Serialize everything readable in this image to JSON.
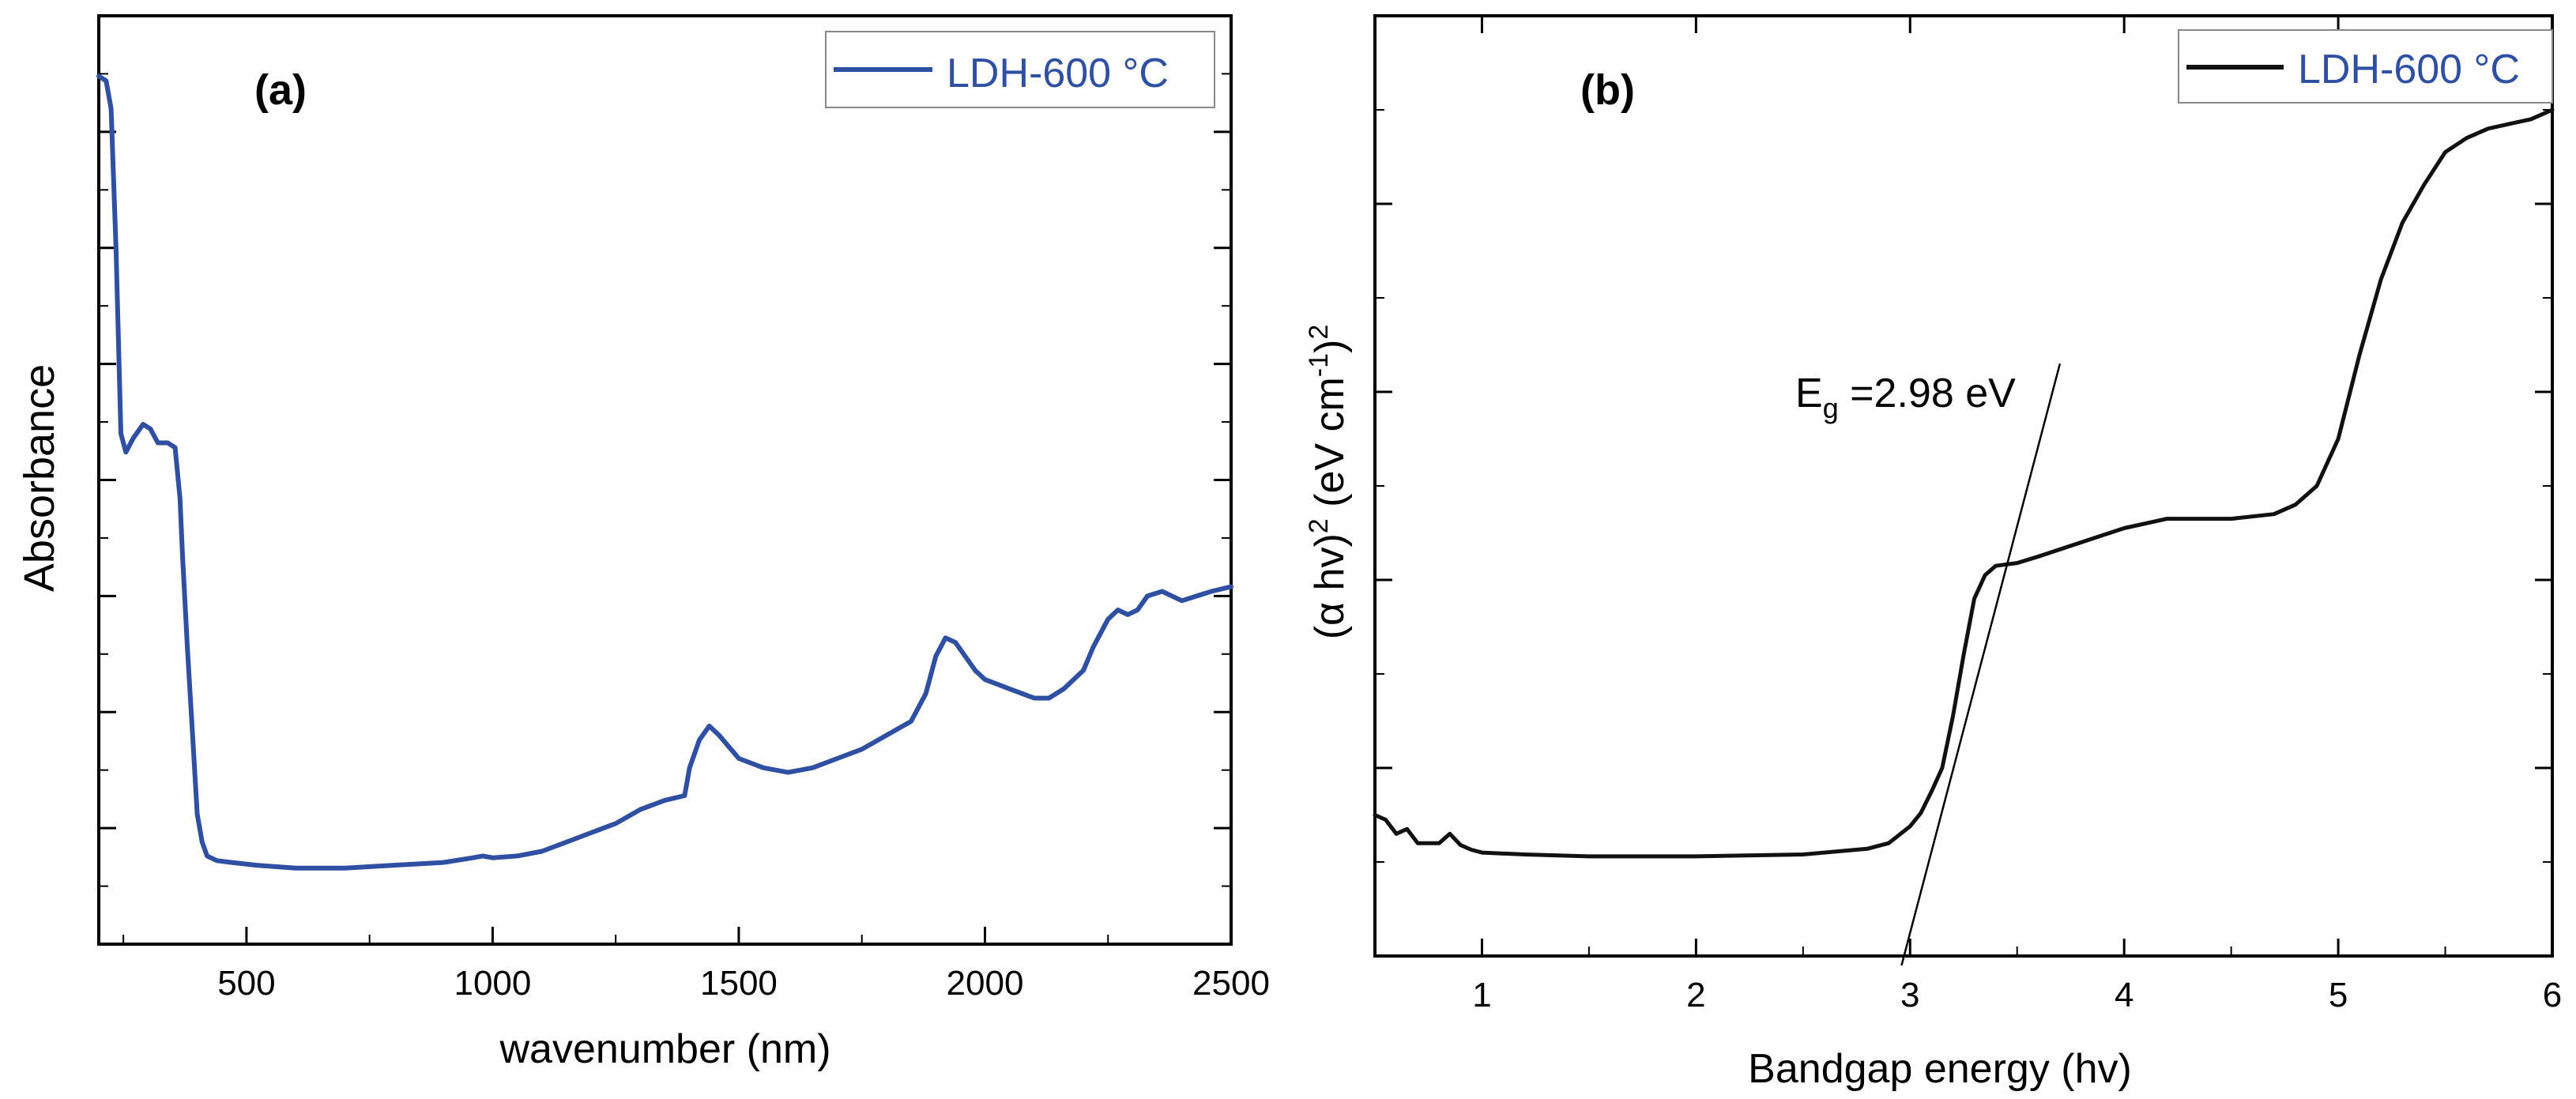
{
  "figure": {
    "panels": [
      {
        "panel_label": "(a)",
        "legend_label": "LDH-600 °C",
        "xlabel": "wavenumber (nm)",
        "ylabel": "Absorbance",
        "x_ticks": [
          "500",
          "1000",
          "1500",
          "2000",
          "2500"
        ]
      },
      {
        "panel_label": "(b)",
        "legend_label": "LDH-600 °C",
        "xlabel": "Bandgap energy (hv)",
        "ylabel_parts": {
          "open": "(α hv)",
          "sup1": "2",
          "mid": " (eV cm",
          "sup2": "-1",
          "close": ")",
          "sup3": "2"
        },
        "x_ticks": [
          "1",
          "2",
          "3",
          "4",
          "5",
          "6"
        ],
        "annotation": {
          "prefix": "E",
          "subscript": "g",
          "suffix": " =2.98 eV"
        }
      }
    ]
  },
  "colors": {
    "series_a": "#2f4fa3",
    "series_b": "#111111",
    "legend_a_text": "#2f4fa3",
    "legend_b_text": "#2f4fa3"
  },
  "chart_data": [
    {
      "type": "line",
      "title": "(a)",
      "xlabel": "wavenumber (nm)",
      "ylabel": "Absorbance",
      "xlim": [
        200,
        2500
      ],
      "ylim": [
        0.0,
        1.0
      ],
      "y_tick_labels": "none",
      "legend": "top-right",
      "series": [
        {
          "name": "LDH-600 °C",
          "x": [
            200,
            215,
            225,
            235,
            245,
            255,
            270,
            290,
            305,
            320,
            340,
            355,
            365,
            370,
            380,
            390,
            400,
            410,
            420,
            440,
            470,
            520,
            600,
            700,
            800,
            900,
            960,
            980,
            1000,
            1050,
            1100,
            1150,
            1200,
            1250,
            1300,
            1350,
            1390,
            1400,
            1420,
            1440,
            1460,
            1500,
            1550,
            1600,
            1650,
            1700,
            1750,
            1800,
            1850,
            1880,
            1900,
            1920,
            1940,
            1960,
            1980,
            2000,
            2050,
            2100,
            2130,
            2160,
            2200,
            2220,
            2250,
            2270,
            2290,
            2310,
            2330,
            2360,
            2380,
            2400,
            2430,
            2460,
            2500
          ],
          "y": [
            0.935,
            0.93,
            0.9,
            0.75,
            0.55,
            0.53,
            0.545,
            0.56,
            0.555,
            0.54,
            0.54,
            0.535,
            0.48,
            0.42,
            0.32,
            0.23,
            0.14,
            0.11,
            0.095,
            0.09,
            0.088,
            0.085,
            0.082,
            0.082,
            0.085,
            0.088,
            0.093,
            0.095,
            0.093,
            0.095,
            0.1,
            0.11,
            0.12,
            0.13,
            0.145,
            0.155,
            0.16,
            0.19,
            0.22,
            0.235,
            0.225,
            0.2,
            0.19,
            0.185,
            0.19,
            0.2,
            0.21,
            0.225,
            0.24,
            0.27,
            0.31,
            0.33,
            0.325,
            0.31,
            0.295,
            0.285,
            0.275,
            0.265,
            0.265,
            0.275,
            0.295,
            0.32,
            0.35,
            0.36,
            0.355,
            0.36,
            0.375,
            0.38,
            0.375,
            0.37,
            0.375,
            0.38,
            0.385
          ]
        }
      ]
    },
    {
      "type": "line",
      "title": "(b)",
      "xlabel": "Bandgap energy (hv)",
      "ylabel": "(α hv)2 (eV cm-1)2",
      "xlim": [
        0.5,
        6.0
      ],
      "ylim": [
        0.0,
        1.0
      ],
      "y_tick_labels": "none",
      "legend": "top-right",
      "series": [
        {
          "name": "LDH-600 °C",
          "x": [
            0.5,
            0.55,
            0.6,
            0.65,
            0.7,
            0.75,
            0.8,
            0.85,
            0.9,
            0.95,
            1.0,
            1.2,
            1.5,
            2.0,
            2.5,
            2.8,
            2.9,
            3.0,
            3.05,
            3.1,
            3.15,
            3.2,
            3.25,
            3.3,
            3.35,
            3.4,
            3.5,
            3.6,
            3.8,
            4.0,
            4.2,
            4.5,
            4.7,
            4.8,
            4.9,
            5.0,
            5.1,
            5.2,
            5.3,
            5.4,
            5.5,
            5.6,
            5.7,
            5.8,
            5.9,
            6.0
          ],
          "y": [
            0.15,
            0.145,
            0.13,
            0.135,
            0.12,
            0.12,
            0.12,
            0.13,
            0.118,
            0.113,
            0.11,
            0.108,
            0.106,
            0.106,
            0.108,
            0.114,
            0.12,
            0.138,
            0.152,
            0.175,
            0.2,
            0.255,
            0.32,
            0.38,
            0.405,
            0.415,
            0.418,
            0.425,
            0.44,
            0.455,
            0.465,
            0.465,
            0.47,
            0.48,
            0.5,
            0.55,
            0.64,
            0.72,
            0.78,
            0.82,
            0.855,
            0.87,
            0.88,
            0.885,
            0.89,
            0.9
          ]
        },
        {
          "name": "Eg tangent",
          "x": [
            2.96,
            3.7
          ],
          "y": [
            -0.01,
            0.63
          ]
        }
      ]
    }
  ]
}
